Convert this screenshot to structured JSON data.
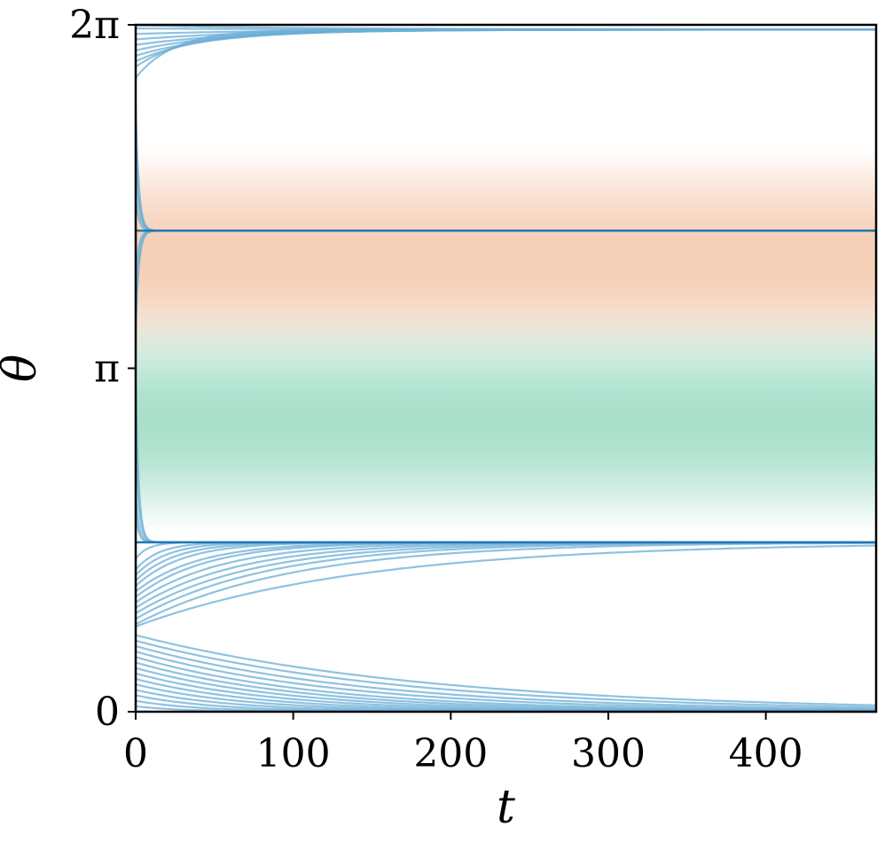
{
  "chart_data": {
    "type": "line",
    "title": "",
    "xlabel": "t",
    "ylabel": "θ",
    "xlim": [
      0,
      470
    ],
    "ylim": [
      0,
      6.2832
    ],
    "grid": false,
    "legend": "none",
    "x_ticks": [
      {
        "value": 0,
        "label": "0"
      },
      {
        "value": 100,
        "label": "100"
      },
      {
        "value": 200,
        "label": "200"
      },
      {
        "value": 300,
        "label": "300"
      },
      {
        "value": 400,
        "label": "400"
      }
    ],
    "y_ticks": [
      {
        "value": 0,
        "label": "0"
      },
      {
        "value": 3.1416,
        "label": "π"
      },
      {
        "value": 6.2832,
        "label": "2π"
      }
    ],
    "background_bands": [
      {
        "name": "orange-band",
        "color": "#f5cfb6",
        "center": 4.15,
        "halfwidth": 1.05
      },
      {
        "name": "green-band",
        "color": "#a9e0cb",
        "center": 2.65,
        "halfwidth": 1.05
      }
    ],
    "fixed_lines": [
      {
        "y": 4.4,
        "color": "#1f77b4"
      },
      {
        "y": 1.55,
        "color": "#1f77b4"
      }
    ],
    "trajectory_groups": [
      {
        "name": "to-2pi",
        "target": 6.24,
        "y0": [
          5.8,
          5.9,
          5.95,
          6.0,
          6.05,
          6.1,
          6.15,
          6.2,
          6.25,
          6.28
        ],
        "tau": [
          25,
          35,
          45,
          55,
          60,
          70,
          80,
          90,
          100,
          110
        ]
      },
      {
        "name": "to-upper-fixed",
        "target": 4.4,
        "y0": [
          5.55,
          5.3,
          5.0,
          4.7,
          4.0,
          3.7,
          3.5
        ],
        "tau": [
          2,
          2,
          2,
          2,
          2,
          2,
          2
        ]
      },
      {
        "name": "to-lower-fixed",
        "target": 1.55,
        "y0": [
          3.0,
          2.5,
          2.0,
          1.8,
          1.4,
          1.3,
          1.25,
          1.2,
          1.15,
          1.1,
          1.05,
          1.0,
          0.95,
          0.9,
          0.85,
          0.8,
          0.78
        ],
        "tau": [
          2,
          2,
          2,
          2,
          8,
          15,
          20,
          25,
          30,
          40,
          45,
          55,
          65,
          75,
          85,
          100,
          145
        ]
      },
      {
        "name": "to-zero",
        "target": 0.0,
        "y0": [
          0.05,
          0.1,
          0.15,
          0.2,
          0.25,
          0.3,
          0.35,
          0.4,
          0.45,
          0.5,
          0.55,
          0.6,
          0.65,
          0.7
        ],
        "tau": [
          30,
          40,
          50,
          60,
          70,
          80,
          90,
          100,
          110,
          120,
          135,
          150,
          170,
          190
        ]
      }
    ],
    "colors": {
      "axis": "#000000",
      "fixed_line": "#1f77b4",
      "trajectory": "#6aaed6"
    }
  }
}
